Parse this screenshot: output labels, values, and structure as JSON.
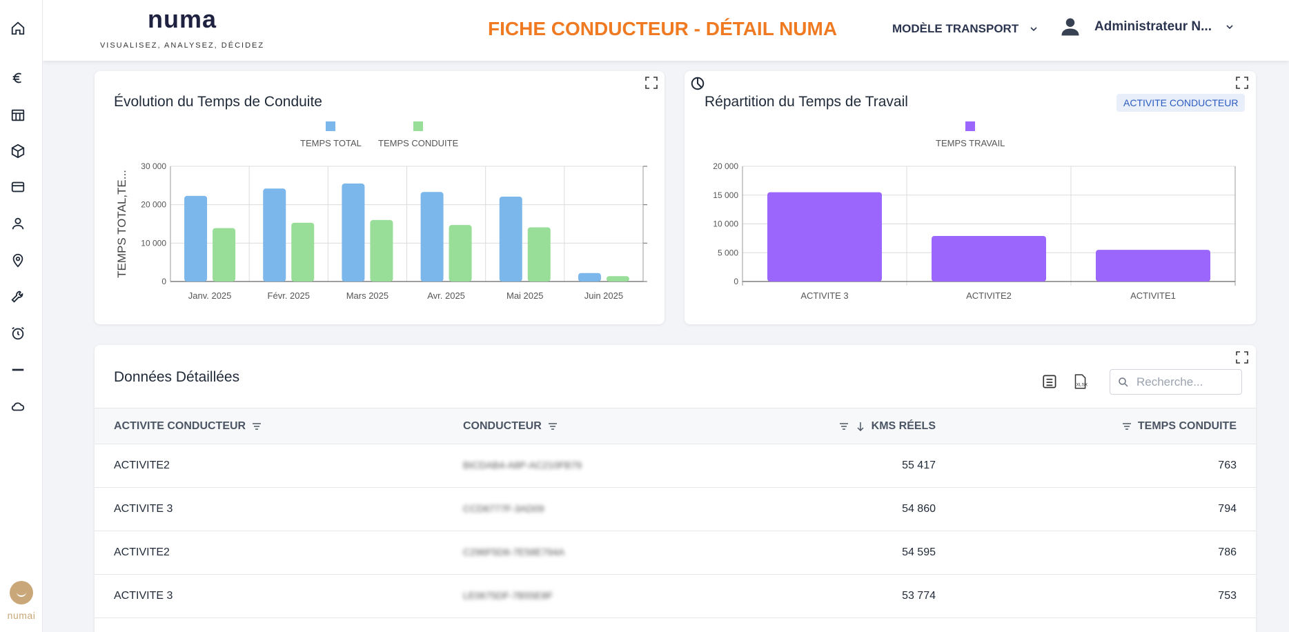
{
  "header": {
    "brand": "numa",
    "tagline": "VISUALISEZ, ANALYSEZ, DÉCIDEZ",
    "page_title": "FICHE CONDUCTEUR - DÉTAIL NUMA",
    "model_selector": "MODÈLE TRANSPORT",
    "user_name": "Administrateur N..."
  },
  "sidebar": {
    "items": [
      "home-icon",
      "euro-icon",
      "table-icon",
      "box-icon",
      "card-icon",
      "user-icon",
      "location-icon",
      "wrench-icon",
      "alarm-icon",
      "minus-icon",
      "cloud-icon"
    ],
    "footer_logo": "numai"
  },
  "chart1": {
    "title": "Évolution du Temps de Conduite",
    "chart_data": {
      "type": "bar",
      "categories": [
        "Janv. 2025",
        "Févr. 2025",
        "Mars 2025",
        "Avr. 2025",
        "Mai 2025",
        "Juin 2025"
      ],
      "series": [
        {
          "name": "TEMPS TOTAL",
          "color": "#7cb7ec",
          "values": [
            22300,
            24200,
            25500,
            23300,
            22100,
            2200
          ]
        },
        {
          "name": "TEMPS CONDUITE",
          "color": "#98dd98",
          "values": [
            13900,
            15300,
            16000,
            14700,
            14100,
            1400
          ]
        }
      ],
      "ylabel": "TEMPS TOTAL,TE...",
      "ylim": [
        0,
        30000
      ],
      "yticks": [
        "0",
        "10 000",
        "20 000",
        "30 000"
      ],
      "grid": true,
      "legend": "top-center"
    }
  },
  "chart2": {
    "title": "Répartition du Temps de Travail",
    "badge": "ACTIVITE CONDUCTEUR",
    "chart_data": {
      "type": "bar",
      "categories": [
        "ACTIVITE 3",
        "ACTIVITE2",
        "ACTIVITE1"
      ],
      "series": [
        {
          "name": "TEMPS TRAVAIL",
          "color": "#9b66fb",
          "values": [
            15500,
            7900,
            5500
          ]
        }
      ],
      "ylim": [
        0,
        20000
      ],
      "yticks": [
        "0",
        "5 000",
        "10 000",
        "15 000",
        "20 000"
      ],
      "grid": true,
      "legend": "top-center"
    }
  },
  "table": {
    "title": "Données Détaillées",
    "search_placeholder": "Recherche...",
    "columns": [
      "ACTIVITE CONDUCTEUR",
      "CONDUCTEUR",
      "KMS RÉELS",
      "TEMPS CONDUITE"
    ],
    "rows": [
      {
        "activite": "ACTIVITE2",
        "conducteur": "BICDAB4-A8P-AC210FB79",
        "kms": "55 417",
        "temps": "763"
      },
      {
        "activite": "ACTIVITE 3",
        "conducteur": "CCD6777F-3AD09",
        "kms": "54 860",
        "temps": "794"
      },
      {
        "activite": "ACTIVITE2",
        "conducteur": "C296F5D6-7E58E794A",
        "kms": "54 595",
        "temps": "786"
      },
      {
        "activite": "ACTIVITE 3",
        "conducteur": "LE0675DF-7B55E8F",
        "kms": "53 774",
        "temps": "753"
      }
    ]
  }
}
